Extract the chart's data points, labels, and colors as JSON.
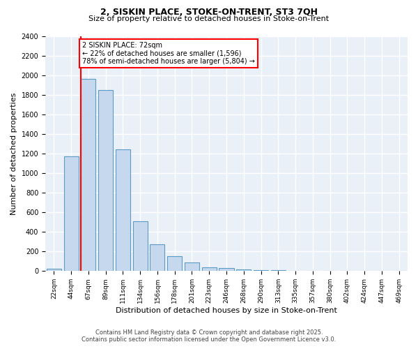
{
  "title1": "2, SISKIN PLACE, STOKE-ON-TRENT, ST3 7QH",
  "title2": "Size of property relative to detached houses in Stoke-on-Trent",
  "xlabel": "Distribution of detached houses by size in Stoke-on-Trent",
  "ylabel": "Number of detached properties",
  "bar_values": [
    25,
    1170,
    1960,
    1850,
    1240,
    510,
    270,
    155,
    85,
    40,
    30,
    15,
    10,
    8,
    5,
    3,
    2,
    2,
    2,
    1,
    1
  ],
  "categories": [
    "22sqm",
    "44sqm",
    "67sqm",
    "89sqm",
    "111sqm",
    "134sqm",
    "156sqm",
    "178sqm",
    "201sqm",
    "223sqm",
    "246sqm",
    "268sqm",
    "290sqm",
    "313sqm",
    "335sqm",
    "357sqm",
    "380sqm",
    "402sqm",
    "424sqm",
    "447sqm",
    "469sqm"
  ],
  "bar_color": "#c5d8ed",
  "bar_edge_color": "#5a9cc5",
  "vline_color": "red",
  "annotation_title": "2 SISKIN PLACE: 72sqm",
  "annotation_line1": "← 22% of detached houses are smaller (1,596)",
  "annotation_line2": "78% of semi-detached houses are larger (5,804) →",
  "annotation_box_color": "white",
  "annotation_box_edge": "red",
  "ylim": [
    0,
    2400
  ],
  "yticks": [
    0,
    200,
    400,
    600,
    800,
    1000,
    1200,
    1400,
    1600,
    1800,
    2000,
    2200,
    2400
  ],
  "bg_color": "#eaf0f8",
  "footer1": "Contains HM Land Registry data © Crown copyright and database right 2025.",
  "footer2": "Contains public sector information licensed under the Open Government Licence v3.0."
}
